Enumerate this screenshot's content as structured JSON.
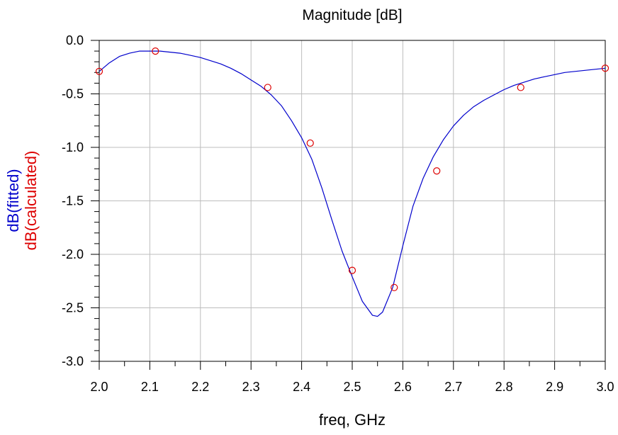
{
  "chart_data": {
    "type": "line",
    "title": "Magnitude [dB]",
    "xlabel": "freq, GHz",
    "ylabel_series": [
      "dB(fitted)",
      "dB(calculated)"
    ],
    "xlim": [
      2.0,
      3.0
    ],
    "ylim": [
      -3.0,
      0.0
    ],
    "x_ticks": [
      "2.0",
      "2.1",
      "2.2",
      "2.3",
      "2.4",
      "2.5",
      "2.6",
      "2.7",
      "2.8",
      "2.9",
      "3.0"
    ],
    "y_ticks": [
      "0.0",
      "-0.5",
      "-1.0",
      "-1.5",
      "-2.0",
      "-2.5",
      "-3.0"
    ],
    "grid": true,
    "series": [
      {
        "name": "dB(fitted)",
        "color": "#0000cc",
        "style": "line",
        "x": [
          2.0,
          2.02,
          2.04,
          2.06,
          2.08,
          2.1,
          2.12,
          2.14,
          2.16,
          2.18,
          2.2,
          2.22,
          2.24,
          2.26,
          2.28,
          2.3,
          2.32,
          2.34,
          2.36,
          2.38,
          2.4,
          2.42,
          2.44,
          2.46,
          2.48,
          2.5,
          2.52,
          2.54,
          2.55,
          2.56,
          2.58,
          2.6,
          2.62,
          2.64,
          2.66,
          2.68,
          2.7,
          2.72,
          2.74,
          2.76,
          2.78,
          2.8,
          2.82,
          2.84,
          2.86,
          2.88,
          2.9,
          2.92,
          2.94,
          2.96,
          2.98,
          3.0
        ],
        "y": [
          -0.29,
          -0.21,
          -0.15,
          -0.12,
          -0.1,
          -0.1,
          -0.1,
          -0.11,
          -0.12,
          -0.14,
          -0.16,
          -0.19,
          -0.22,
          -0.26,
          -0.31,
          -0.37,
          -0.43,
          -0.51,
          -0.61,
          -0.75,
          -0.91,
          -1.11,
          -1.38,
          -1.68,
          -1.97,
          -2.21,
          -2.44,
          -2.57,
          -2.58,
          -2.54,
          -2.31,
          -1.92,
          -1.55,
          -1.29,
          -1.09,
          -0.93,
          -0.8,
          -0.7,
          -0.62,
          -0.56,
          -0.51,
          -0.46,
          -0.42,
          -0.39,
          -0.36,
          -0.34,
          -0.32,
          -0.3,
          -0.29,
          -0.28,
          -0.27,
          -0.26
        ]
      },
      {
        "name": "dB(calculated)",
        "color": "#dd0000",
        "style": "markers",
        "x": [
          2.0,
          2.111,
          2.333,
          2.417,
          2.5,
          2.583,
          2.667,
          2.833,
          3.0
        ],
        "y": [
          -0.29,
          -0.1,
          -0.44,
          -0.96,
          -2.15,
          -2.31,
          -1.22,
          -0.44,
          -0.26
        ]
      }
    ]
  }
}
